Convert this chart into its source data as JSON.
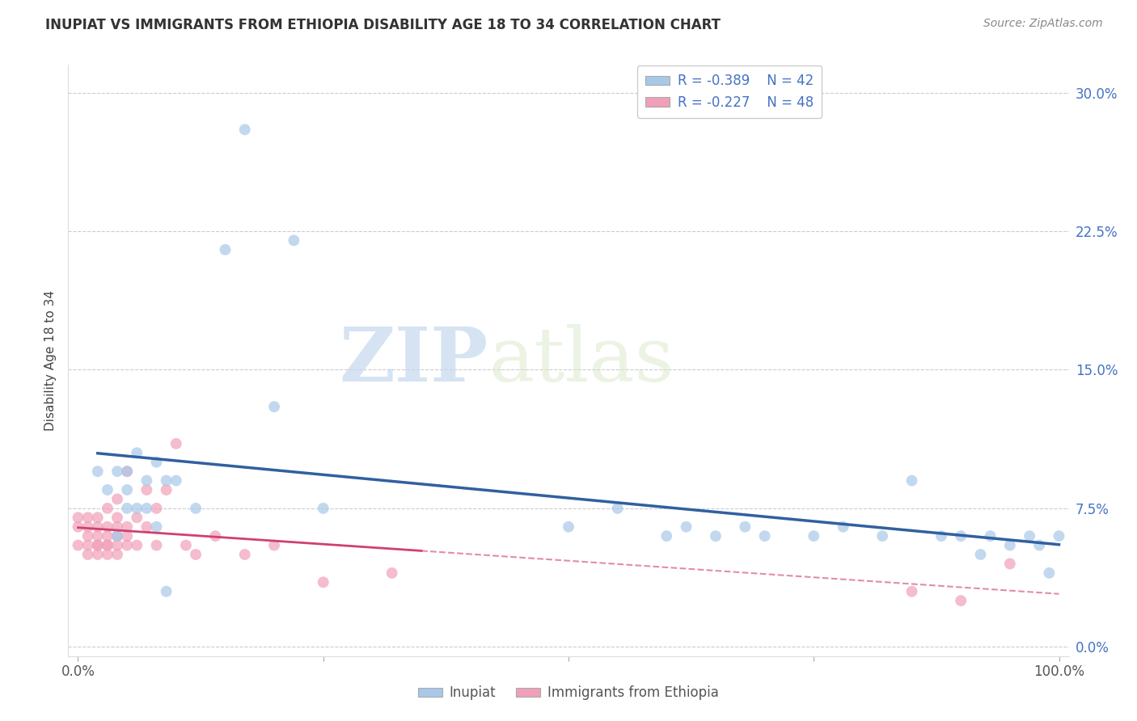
{
  "title": "INUPIAT VS IMMIGRANTS FROM ETHIOPIA DISABILITY AGE 18 TO 34 CORRELATION CHART",
  "source": "Source: ZipAtlas.com",
  "ylabel": "Disability Age 18 to 34",
  "r_inupiat": "-0.389",
  "n_inupiat": "42",
  "r_ethiopia": "-0.227",
  "n_ethiopia": "48",
  "color_inupiat": "#a8c8e8",
  "color_ethiopia": "#f0a0b8",
  "line_color_inupiat": "#3060a0",
  "line_color_ethiopia": "#d04070",
  "watermark_zip": "ZIP",
  "watermark_atlas": "atlas",
  "ylim": [
    -0.005,
    0.315
  ],
  "xlim": [
    -0.01,
    1.01
  ],
  "inupiat_x": [
    0.02,
    0.03,
    0.04,
    0.04,
    0.05,
    0.05,
    0.05,
    0.06,
    0.06,
    0.07,
    0.07,
    0.08,
    0.08,
    0.09,
    0.09,
    0.1,
    0.12,
    0.15,
    0.17,
    0.2,
    0.22,
    0.25,
    0.5,
    0.55,
    0.6,
    0.62,
    0.65,
    0.68,
    0.7,
    0.75,
    0.78,
    0.82,
    0.85,
    0.88,
    0.9,
    0.92,
    0.93,
    0.95,
    0.97,
    0.98,
    0.99,
    1.0
  ],
  "inupiat_y": [
    0.095,
    0.085,
    0.095,
    0.06,
    0.095,
    0.075,
    0.085,
    0.105,
    0.075,
    0.09,
    0.075,
    0.1,
    0.065,
    0.09,
    0.03,
    0.09,
    0.075,
    0.215,
    0.28,
    0.13,
    0.22,
    0.075,
    0.065,
    0.075,
    0.06,
    0.065,
    0.06,
    0.065,
    0.06,
    0.06,
    0.065,
    0.06,
    0.09,
    0.06,
    0.06,
    0.05,
    0.06,
    0.055,
    0.06,
    0.055,
    0.04,
    0.06
  ],
  "ethiopia_x": [
    0.0,
    0.0,
    0.0,
    0.01,
    0.01,
    0.01,
    0.01,
    0.01,
    0.02,
    0.02,
    0.02,
    0.02,
    0.02,
    0.02,
    0.03,
    0.03,
    0.03,
    0.03,
    0.03,
    0.03,
    0.04,
    0.04,
    0.04,
    0.04,
    0.04,
    0.04,
    0.05,
    0.05,
    0.05,
    0.05,
    0.06,
    0.06,
    0.07,
    0.07,
    0.08,
    0.08,
    0.09,
    0.1,
    0.11,
    0.12,
    0.14,
    0.17,
    0.2,
    0.25,
    0.32,
    0.85,
    0.9,
    0.95
  ],
  "ethiopia_y": [
    0.055,
    0.065,
    0.07,
    0.055,
    0.06,
    0.065,
    0.07,
    0.05,
    0.055,
    0.06,
    0.065,
    0.055,
    0.05,
    0.07,
    0.055,
    0.06,
    0.055,
    0.065,
    0.05,
    0.075,
    0.06,
    0.055,
    0.065,
    0.05,
    0.07,
    0.08,
    0.06,
    0.055,
    0.065,
    0.095,
    0.055,
    0.07,
    0.085,
    0.065,
    0.055,
    0.075,
    0.085,
    0.11,
    0.055,
    0.05,
    0.06,
    0.05,
    0.055,
    0.035,
    0.04,
    0.03,
    0.025,
    0.045
  ]
}
